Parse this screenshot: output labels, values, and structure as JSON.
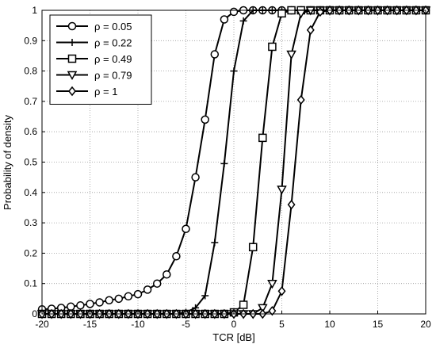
{
  "chart_data": {
    "type": "line",
    "xlabel": "TCR [dB]",
    "ylabel": "Probability of density",
    "xlim": [
      -20,
      20
    ],
    "ylim": [
      0,
      1
    ],
    "xticks": [
      -20,
      -15,
      -10,
      -5,
      0,
      5,
      10,
      15,
      20
    ],
    "yticks": [
      0,
      0.1,
      0.2,
      0.3,
      0.4,
      0.5,
      0.6,
      0.7,
      0.8,
      0.9,
      1
    ],
    "grid": true,
    "legend_position": "top-left",
    "series": [
      {
        "name": "ρ = 0.05",
        "marker": "circle",
        "points": [
          [
            -20,
            0.015
          ],
          [
            -19,
            0.017
          ],
          [
            -18,
            0.02
          ],
          [
            -17,
            0.024
          ],
          [
            -16,
            0.028
          ],
          [
            -15,
            0.033
          ],
          [
            -14,
            0.038
          ],
          [
            -13,
            0.045
          ],
          [
            -12,
            0.05
          ],
          [
            -11,
            0.058
          ],
          [
            -10,
            0.065
          ],
          [
            -9,
            0.08
          ],
          [
            -8,
            0.1
          ],
          [
            -7,
            0.13
          ],
          [
            -6,
            0.19
          ],
          [
            -5,
            0.28
          ],
          [
            -4,
            0.45
          ],
          [
            -3,
            0.64
          ],
          [
            -2,
            0.855
          ],
          [
            -1,
            0.97
          ],
          [
            0,
            0.995
          ],
          [
            1,
            1.0
          ],
          [
            2,
            1.0
          ],
          [
            3,
            1.0
          ],
          [
            4,
            1.0
          ],
          [
            5,
            1.0
          ],
          [
            6,
            1.0
          ],
          [
            7,
            1.0
          ],
          [
            8,
            1.0
          ],
          [
            9,
            1.0
          ],
          [
            10,
            1.0
          ],
          [
            11,
            1.0
          ],
          [
            12,
            1.0
          ],
          [
            13,
            1.0
          ],
          [
            14,
            1.0
          ],
          [
            15,
            1.0
          ],
          [
            16,
            1.0
          ],
          [
            17,
            1.0
          ],
          [
            18,
            1.0
          ],
          [
            19,
            1.0
          ],
          [
            20,
            1.0
          ]
        ]
      },
      {
        "name": "ρ = 0.22",
        "marker": "plus",
        "points": [
          [
            -20,
            0.0
          ],
          [
            -19,
            0.0
          ],
          [
            -18,
            0.0
          ],
          [
            -17,
            0.0
          ],
          [
            -16,
            0.0
          ],
          [
            -15,
            0.0
          ],
          [
            -14,
            0.0
          ],
          [
            -13,
            0.0
          ],
          [
            -12,
            0.0
          ],
          [
            -11,
            0.0
          ],
          [
            -10,
            0.0
          ],
          [
            -9,
            0.0
          ],
          [
            -8,
            0.0
          ],
          [
            -7,
            0.0
          ],
          [
            -6,
            0.0
          ],
          [
            -5,
            0.005
          ],
          [
            -4,
            0.02
          ],
          [
            -3,
            0.06
          ],
          [
            -2,
            0.235
          ],
          [
            -1,
            0.495
          ],
          [
            0,
            0.8
          ],
          [
            1,
            0.965
          ],
          [
            2,
            1.0
          ],
          [
            3,
            1.0
          ],
          [
            4,
            1.0
          ],
          [
            5,
            1.0
          ],
          [
            6,
            1.0
          ],
          [
            7,
            1.0
          ],
          [
            8,
            1.0
          ],
          [
            9,
            1.0
          ],
          [
            10,
            1.0
          ],
          [
            11,
            1.0
          ],
          [
            12,
            1.0
          ],
          [
            13,
            1.0
          ],
          [
            14,
            1.0
          ],
          [
            15,
            1.0
          ],
          [
            16,
            1.0
          ],
          [
            17,
            1.0
          ],
          [
            18,
            1.0
          ],
          [
            19,
            1.0
          ],
          [
            20,
            1.0
          ]
        ]
      },
      {
        "name": "ρ = 0.49",
        "marker": "square",
        "points": [
          [
            -20,
            0.0
          ],
          [
            -19,
            0.0
          ],
          [
            -18,
            0.0
          ],
          [
            -17,
            0.0
          ],
          [
            -16,
            0.0
          ],
          [
            -15,
            0.0
          ],
          [
            -14,
            0.0
          ],
          [
            -13,
            0.0
          ],
          [
            -12,
            0.0
          ],
          [
            -11,
            0.0
          ],
          [
            -10,
            0.0
          ],
          [
            -9,
            0.0
          ],
          [
            -8,
            0.0
          ],
          [
            -7,
            0.0
          ],
          [
            -6,
            0.0
          ],
          [
            -5,
            0.0
          ],
          [
            -4,
            0.0
          ],
          [
            -3,
            0.0
          ],
          [
            -2,
            0.0
          ],
          [
            -1,
            0.0
          ],
          [
            0,
            0.005
          ],
          [
            1,
            0.03
          ],
          [
            2,
            0.22
          ],
          [
            3,
            0.58
          ],
          [
            4,
            0.88
          ],
          [
            5,
            0.99
          ],
          [
            6,
            1.0
          ],
          [
            7,
            1.0
          ],
          [
            8,
            1.0
          ],
          [
            9,
            1.0
          ],
          [
            10,
            1.0
          ],
          [
            11,
            1.0
          ],
          [
            12,
            1.0
          ],
          [
            13,
            1.0
          ],
          [
            14,
            1.0
          ],
          [
            15,
            1.0
          ],
          [
            16,
            1.0
          ],
          [
            17,
            1.0
          ],
          [
            18,
            1.0
          ],
          [
            19,
            1.0
          ],
          [
            20,
            1.0
          ]
        ]
      },
      {
        "name": "ρ = 0.79",
        "marker": "triangle-down",
        "points": [
          [
            -20,
            0.0
          ],
          [
            -19,
            0.0
          ],
          [
            -18,
            0.0
          ],
          [
            -17,
            0.0
          ],
          [
            -16,
            0.0
          ],
          [
            -15,
            0.0
          ],
          [
            -14,
            0.0
          ],
          [
            -13,
            0.0
          ],
          [
            -12,
            0.0
          ],
          [
            -11,
            0.0
          ],
          [
            -10,
            0.0
          ],
          [
            -9,
            0.0
          ],
          [
            -8,
            0.0
          ],
          [
            -7,
            0.0
          ],
          [
            -6,
            0.0
          ],
          [
            -5,
            0.0
          ],
          [
            -4,
            0.0
          ],
          [
            -3,
            0.0
          ],
          [
            -2,
            0.0
          ],
          [
            -1,
            0.0
          ],
          [
            0,
            0.0
          ],
          [
            1,
            0.0
          ],
          [
            2,
            0.0
          ],
          [
            3,
            0.02
          ],
          [
            4,
            0.1
          ],
          [
            5,
            0.41
          ],
          [
            6,
            0.855
          ],
          [
            7,
            0.99
          ],
          [
            8,
            1.0
          ],
          [
            9,
            1.0
          ],
          [
            10,
            1.0
          ],
          [
            11,
            1.0
          ],
          [
            12,
            1.0
          ],
          [
            13,
            1.0
          ],
          [
            14,
            1.0
          ],
          [
            15,
            1.0
          ],
          [
            16,
            1.0
          ],
          [
            17,
            1.0
          ],
          [
            18,
            1.0
          ],
          [
            19,
            1.0
          ],
          [
            20,
            1.0
          ]
        ]
      },
      {
        "name": "ρ = 1",
        "marker": "diamond",
        "points": [
          [
            -20,
            0.0
          ],
          [
            -19,
            0.0
          ],
          [
            -18,
            0.0
          ],
          [
            -17,
            0.0
          ],
          [
            -16,
            0.0
          ],
          [
            -15,
            0.0
          ],
          [
            -14,
            0.0
          ],
          [
            -13,
            0.0
          ],
          [
            -12,
            0.0
          ],
          [
            -11,
            0.0
          ],
          [
            -10,
            0.0
          ],
          [
            -9,
            0.0
          ],
          [
            -8,
            0.0
          ],
          [
            -7,
            0.0
          ],
          [
            -6,
            0.0
          ],
          [
            -5,
            0.0
          ],
          [
            -4,
            0.0
          ],
          [
            -3,
            0.0
          ],
          [
            -2,
            0.0
          ],
          [
            -1,
            0.0
          ],
          [
            0,
            0.0
          ],
          [
            1,
            0.0
          ],
          [
            2,
            0.0
          ],
          [
            3,
            0.0
          ],
          [
            4,
            0.01
          ],
          [
            5,
            0.075
          ],
          [
            6,
            0.36
          ],
          [
            7,
            0.705
          ],
          [
            8,
            0.935
          ],
          [
            9,
            0.995
          ],
          [
            10,
            1.0
          ],
          [
            11,
            1.0
          ],
          [
            12,
            1.0
          ],
          [
            13,
            1.0
          ],
          [
            14,
            1.0
          ],
          [
            15,
            1.0
          ],
          [
            16,
            1.0
          ],
          [
            17,
            1.0
          ],
          [
            18,
            1.0
          ],
          [
            19,
            1.0
          ],
          [
            20,
            1.0
          ]
        ]
      }
    ]
  }
}
